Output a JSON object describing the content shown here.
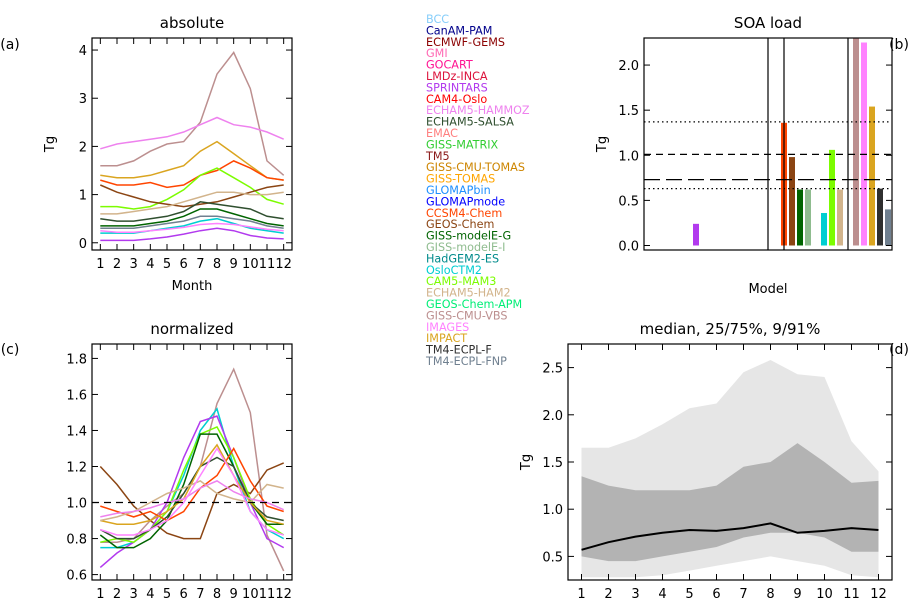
{
  "legend": [
    {
      "label": "BCC",
      "color": "#87cefa"
    },
    {
      "label": "CanAM-PAM",
      "color": "#00008b"
    },
    {
      "label": "ECMWF-GEMS",
      "color": "#8b0000"
    },
    {
      "label": "GMI",
      "color": "#ff69b4"
    },
    {
      "label": "GOCART",
      "color": "#ff1493"
    },
    {
      "label": "LMDz-INCA",
      "color": "#dc143c"
    },
    {
      "label": "SPRINTARS",
      "color": "#b23aee"
    },
    {
      "label": "CAM4-Oslo",
      "color": "#ff0000"
    },
    {
      "label": "ECHAM5-HAMMOZ",
      "color": "#ee82ee"
    },
    {
      "label": "ECHAM5-SALSA",
      "color": "#2f4f2f"
    },
    {
      "label": "EMAC",
      "color": "#ff7f7f"
    },
    {
      "label": "GISS-MATRIX",
      "color": "#32cd32"
    },
    {
      "label": "TM5",
      "color": "#8b1a1a"
    },
    {
      "label": "GISS-CMU-TOMAS",
      "color": "#cd8500"
    },
    {
      "label": "GISS-TOMAS",
      "color": "#ffa500"
    },
    {
      "label": "GLOMAPbin",
      "color": "#1e90ff"
    },
    {
      "label": "GLOMAPmode",
      "color": "#0000ff"
    },
    {
      "label": "CCSM4-Chem",
      "color": "#ff4500"
    },
    {
      "label": "GEOS-Chem",
      "color": "#8b4513"
    },
    {
      "label": "GISS-modelE-G",
      "color": "#006400"
    },
    {
      "label": "GISS-modelE-I",
      "color": "#8fbc8f"
    },
    {
      "label": "HadGEM2-ES",
      "color": "#008b8b"
    },
    {
      "label": "OsloCTM2",
      "color": "#00ced1"
    },
    {
      "label": "CAM5-MAM3",
      "color": "#7cfc00"
    },
    {
      "label": "ECHAM5-HAM2",
      "color": "#d2b48c"
    },
    {
      "label": "GEOS-Chem-APM",
      "color": "#00ee76"
    },
    {
      "label": "GISS-CMU-VBS",
      "color": "#bc8f8f"
    },
    {
      "label": "IMAGES",
      "color": "#ff82ff"
    },
    {
      "label": "IMPACT",
      "color": "#daa520"
    },
    {
      "label": "TM4-ECPL-F",
      "color": "#2f2f2f"
    },
    {
      "label": "TM4-ECPL-FNP",
      "color": "#708090"
    }
  ],
  "chart_data": [
    {
      "panel": "(a)",
      "type": "line",
      "title": "absolute",
      "xlabel": "Month",
      "ylabel": "Tg",
      "x": [
        1,
        2,
        3,
        4,
        5,
        6,
        7,
        8,
        9,
        10,
        11,
        12
      ],
      "xlim": [
        0.5,
        12.5
      ],
      "ylim": [
        -0.15,
        4.25
      ],
      "yticks": [
        0,
        1,
        2,
        3,
        4
      ],
      "series": [
        {
          "color": "#bc8f8f",
          "values": [
            1.6,
            1.6,
            1.7,
            1.9,
            2.05,
            2.1,
            2.5,
            3.5,
            3.95,
            3.2,
            1.7,
            1.4
          ]
        },
        {
          "color": "#ee82ee",
          "values": [
            1.95,
            2.05,
            2.1,
            2.15,
            2.2,
            2.3,
            2.45,
            2.6,
            2.45,
            2.4,
            2.3,
            2.15
          ]
        },
        {
          "color": "#daa520",
          "values": [
            1.4,
            1.35,
            1.35,
            1.4,
            1.5,
            1.6,
            1.9,
            2.1,
            1.85,
            1.6,
            1.35,
            1.3
          ]
        },
        {
          "color": "#ff4500",
          "values": [
            1.3,
            1.2,
            1.2,
            1.25,
            1.15,
            1.2,
            1.4,
            1.5,
            1.7,
            1.55,
            1.35,
            1.3
          ]
        },
        {
          "color": "#7cfc00",
          "values": [
            0.75,
            0.75,
            0.7,
            0.75,
            0.9,
            1.1,
            1.4,
            1.55,
            1.35,
            1.15,
            0.9,
            0.8
          ]
        },
        {
          "color": "#8b4513",
          "values": [
            1.2,
            1.05,
            0.95,
            0.85,
            0.8,
            0.75,
            0.8,
            0.85,
            0.95,
            1.05,
            1.15,
            1.2
          ]
        },
        {
          "color": "#d2b48c",
          "values": [
            0.6,
            0.6,
            0.65,
            0.7,
            0.75,
            0.85,
            0.95,
            1.05,
            1.05,
            1.0,
            1.0,
            1.05
          ]
        },
        {
          "color": "#2f4f2f",
          "values": [
            0.5,
            0.45,
            0.45,
            0.5,
            0.55,
            0.65,
            0.85,
            0.8,
            0.75,
            0.7,
            0.55,
            0.5
          ]
        },
        {
          "color": "#006400",
          "values": [
            0.35,
            0.35,
            0.35,
            0.4,
            0.45,
            0.55,
            0.7,
            0.7,
            0.6,
            0.5,
            0.4,
            0.35
          ]
        },
        {
          "color": "#708090",
          "values": [
            0.3,
            0.3,
            0.3,
            0.35,
            0.4,
            0.45,
            0.55,
            0.55,
            0.5,
            0.45,
            0.35,
            0.3
          ]
        },
        {
          "color": "#00ced1",
          "values": [
            0.2,
            0.2,
            0.2,
            0.25,
            0.3,
            0.35,
            0.45,
            0.5,
            0.4,
            0.3,
            0.25,
            0.2
          ]
        },
        {
          "color": "#ff82ff",
          "values": [
            0.25,
            0.22,
            0.22,
            0.25,
            0.28,
            0.32,
            0.38,
            0.4,
            0.38,
            0.33,
            0.28,
            0.25
          ]
        },
        {
          "color": "#b23aee",
          "values": [
            0.05,
            0.05,
            0.05,
            0.08,
            0.12,
            0.18,
            0.25,
            0.3,
            0.25,
            0.15,
            0.1,
            0.08
          ]
        }
      ]
    },
    {
      "panel": "(b)",
      "type": "bar",
      "title": "SOA load",
      "xlabel": "Model",
      "ylabel": "Tg",
      "ylim": [
        -0.05,
        2.3
      ],
      "yticks": [
        0.0,
        0.5,
        1.0,
        1.5,
        2.0
      ],
      "n_slots": 31,
      "bars": [
        {
          "slot": 6,
          "value": 0.24,
          "color": "#b23aee"
        },
        {
          "slot": 17,
          "value": 1.36,
          "color": "#ff4500"
        },
        {
          "slot": 18,
          "value": 0.98,
          "color": "#8b4513"
        },
        {
          "slot": 19,
          "value": 0.62,
          "color": "#006400"
        },
        {
          "slot": 20,
          "value": 0.62,
          "color": "#8fbc8f"
        },
        {
          "slot": 22,
          "value": 0.36,
          "color": "#00ced1"
        },
        {
          "slot": 23,
          "value": 1.06,
          "color": "#7cfc00"
        },
        {
          "slot": 24,
          "value": 0.62,
          "color": "#d2b48c"
        },
        {
          "slot": 26,
          "value": 2.3,
          "color": "#bc8f8f"
        },
        {
          "slot": 27,
          "value": 2.25,
          "color": "#ff82ff"
        },
        {
          "slot": 28,
          "value": 1.54,
          "color": "#daa520"
        },
        {
          "slot": 29,
          "value": 0.63,
          "color": "#2f2f2f"
        },
        {
          "slot": 30,
          "value": 0.4,
          "color": "#708090"
        }
      ],
      "separators": [
        15.5,
        17.5,
        25.5
      ],
      "hlines": [
        {
          "value": 1.37,
          "style": "dotted"
        },
        {
          "value": 1.01,
          "style": "dashed"
        },
        {
          "value": 0.73,
          "style": "longdash"
        },
        {
          "value": 0.63,
          "style": "dotted"
        }
      ]
    },
    {
      "panel": "(c)",
      "type": "line",
      "title": "normalized",
      "xlabel": "Month",
      "x": [
        1,
        2,
        3,
        4,
        5,
        6,
        7,
        8,
        9,
        10,
        11,
        12
      ],
      "xlim": [
        0.5,
        12.5
      ],
      "ylim": [
        0.57,
        1.88
      ],
      "yticks": [
        0.6,
        0.8,
        1.0,
        1.2,
        1.4,
        1.6,
        1.8
      ],
      "reference_line": 1.0,
      "series": [
        {
          "color": "#bc8f8f",
          "values": [
            0.78,
            0.78,
            0.8,
            0.9,
            0.98,
            1.05,
            1.2,
            1.55,
            1.74,
            1.5,
            0.82,
            0.62
          ]
        },
        {
          "color": "#8b4513",
          "values": [
            1.2,
            1.1,
            0.98,
            0.9,
            0.83,
            0.8,
            0.8,
            1.05,
            1.1,
            1.05,
            1.18,
            1.22
          ]
        },
        {
          "color": "#00ced1",
          "values": [
            0.75,
            0.75,
            0.78,
            0.85,
            0.95,
            1.15,
            1.4,
            1.52,
            1.2,
            0.95,
            0.85,
            0.8
          ]
        },
        {
          "color": "#b23aee",
          "values": [
            0.64,
            0.72,
            0.78,
            0.85,
            1.0,
            1.25,
            1.45,
            1.48,
            1.25,
            1.0,
            0.8,
            0.75
          ]
        },
        {
          "color": "#7cfc00",
          "values": [
            0.78,
            0.8,
            0.78,
            0.85,
            0.95,
            1.18,
            1.38,
            1.42,
            1.25,
            1.02,
            0.88,
            0.82
          ]
        },
        {
          "color": "#006400",
          "values": [
            0.82,
            0.75,
            0.75,
            0.8,
            0.9,
            1.1,
            1.38,
            1.38,
            1.2,
            1.0,
            0.88,
            0.88
          ]
        },
        {
          "color": "#2f4f2f",
          "values": [
            0.85,
            0.8,
            0.8,
            0.85,
            0.92,
            1.05,
            1.2,
            1.25,
            1.2,
            1.0,
            0.92,
            0.9
          ]
        },
        {
          "color": "#ff4500",
          "values": [
            0.98,
            0.95,
            0.92,
            0.95,
            0.9,
            0.95,
            1.08,
            1.15,
            1.3,
            1.12,
            0.98,
            0.95
          ]
        },
        {
          "color": "#daa520",
          "values": [
            0.9,
            0.88,
            0.88,
            0.9,
            0.95,
            1.02,
            1.2,
            1.32,
            1.15,
            1.0,
            0.9,
            0.88
          ]
        },
        {
          "color": "#d2b48c",
          "values": [
            0.9,
            0.92,
            0.95,
            1.0,
            1.05,
            1.08,
            1.12,
            1.05,
            1.02,
            1.0,
            1.1,
            1.08
          ]
        },
        {
          "color": "#ee82ee",
          "values": [
            0.92,
            0.94,
            0.95,
            0.97,
            1.0,
            1.02,
            1.08,
            1.12,
            1.06,
            1.02,
            1.0,
            0.96
          ]
        },
        {
          "color": "#ff82ff",
          "values": [
            0.85,
            0.82,
            0.82,
            0.85,
            0.9,
            1.0,
            1.15,
            1.3,
            1.15,
            0.95,
            0.85,
            0.82
          ]
        }
      ]
    },
    {
      "panel": "(d)",
      "type": "area",
      "title": "median, 25/75%, 9/91%",
      "xlabel": "Month",
      "ylabel": "Tg",
      "x": [
        1,
        2,
        3,
        4,
        5,
        6,
        7,
        8,
        9,
        10,
        11,
        12
      ],
      "xlim": [
        0.5,
        12.5
      ],
      "ylim": [
        0.25,
        2.75
      ],
      "yticks": [
        0.5,
        1.0,
        1.5,
        2.0,
        2.5
      ],
      "p09": [
        0.28,
        0.28,
        0.28,
        0.3,
        0.35,
        0.4,
        0.45,
        0.5,
        0.45,
        0.4,
        0.3,
        0.28
      ],
      "p91": [
        1.65,
        1.65,
        1.75,
        1.9,
        2.07,
        2.12,
        2.45,
        2.58,
        2.43,
        2.4,
        1.72,
        1.4
      ],
      "p25": [
        0.5,
        0.45,
        0.45,
        0.5,
        0.55,
        0.6,
        0.7,
        0.75,
        0.75,
        0.7,
        0.55,
        0.55
      ],
      "p75": [
        1.35,
        1.25,
        1.2,
        1.2,
        1.2,
        1.25,
        1.45,
        1.5,
        1.7,
        1.5,
        1.28,
        1.3
      ],
      "median": [
        0.57,
        0.65,
        0.71,
        0.75,
        0.78,
        0.77,
        0.8,
        0.85,
        0.75,
        0.77,
        0.8,
        0.78
      ],
      "colors": {
        "outer": "#e6e6e6",
        "inner": "#b3b3b3",
        "median": "#000000"
      }
    }
  ]
}
